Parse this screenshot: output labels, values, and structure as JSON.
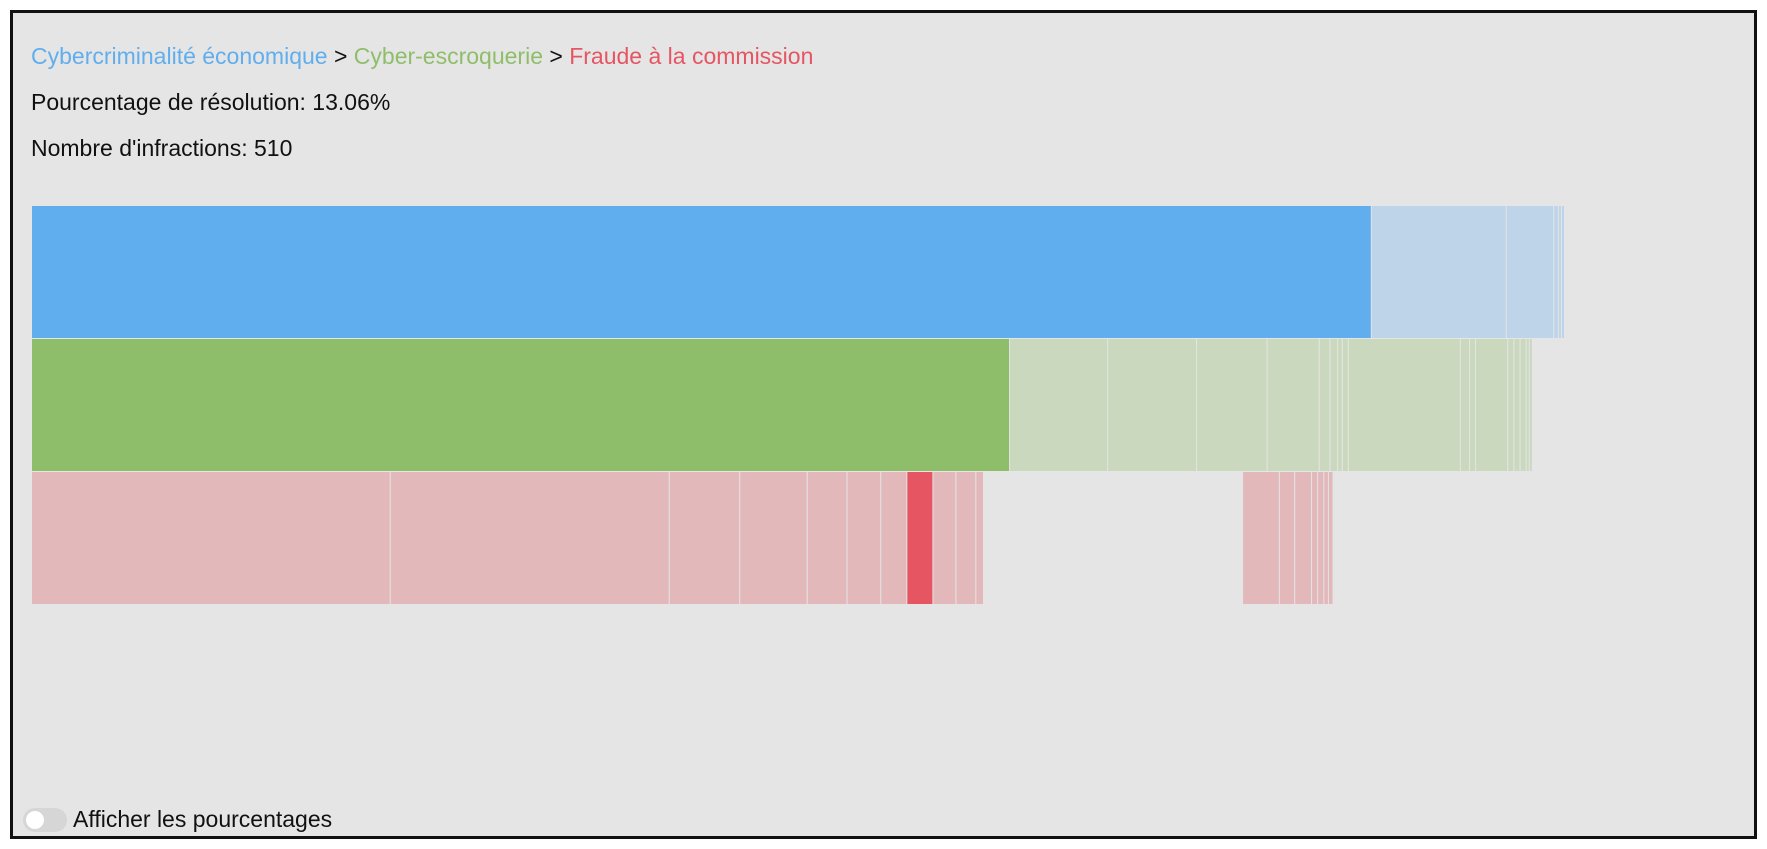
{
  "breadcrumb": {
    "level1": "Cybercriminalité économique",
    "level2": "Cyber-escroquerie",
    "level3": "Fraude à la commission",
    "separator": ">"
  },
  "stats": {
    "resolution": "Pourcentage de résolution: 13.06%",
    "count": "Nombre d'infractions: 510"
  },
  "toggle": {
    "label": "Afficher les pourcentages",
    "checked": false
  },
  "colors": {
    "level1": "#61aeee",
    "level2": "#8fbe6b",
    "level3": "#e55562",
    "level1_faded": "#bed4e9",
    "level2_faded": "#cad8be",
    "level3_faded": "#e2b8bb",
    "divider": "#f2f2f2"
  },
  "chart_data": {
    "type": "icicle",
    "unit": "share of total offences (%)",
    "rows": [
      {
        "level": 1,
        "segments": [
          {
            "value": 87.4,
            "selected": true,
            "label": "Cybercriminalité économique"
          },
          {
            "value": 8.8
          },
          {
            "value": 3.1
          },
          {
            "value": 0.3
          },
          {
            "value": 0.2
          },
          {
            "value": 0.2
          }
        ]
      },
      {
        "level": 2,
        "segments": [
          {
            "value": 63.8,
            "selected": true,
            "label": "Cyber-escroquerie"
          },
          {
            "value": 6.4
          },
          {
            "value": 5.8
          },
          {
            "value": 4.6
          },
          {
            "value": 3.4
          },
          {
            "value": 0.7
          },
          {
            "value": 0.5
          },
          {
            "value": 0.3
          },
          {
            "value": 0.4
          },
          {
            "value": 7.3
          },
          {
            "value": 0.6
          },
          {
            "value": 0.4
          },
          {
            "value": 2.1
          },
          {
            "value": 0.4
          },
          {
            "value": 0.4
          },
          {
            "value": 0.4
          },
          {
            "value": 0.2
          },
          {
            "value": 0.2
          }
        ]
      },
      {
        "level": 3,
        "segments": [
          {
            "value": 23.4
          },
          {
            "value": 18.2
          },
          {
            "value": 4.6
          },
          {
            "value": 4.4
          },
          {
            "value": 2.6
          },
          {
            "value": 2.2
          },
          {
            "value": 1.7
          },
          {
            "value": 1.7,
            "selected": true,
            "label": "Fraude à la commission"
          },
          {
            "value": 1.5
          },
          {
            "value": 1.3
          },
          {
            "value": 0.5
          },
          {
            "value": 16.9,
            "empty": true
          },
          {
            "value": 2.4
          },
          {
            "value": 1.0
          },
          {
            "value": 1.1
          },
          {
            "value": 0.4
          },
          {
            "value": 0.4
          },
          {
            "value": 0.3
          },
          {
            "value": 0.3
          }
        ]
      }
    ]
  }
}
